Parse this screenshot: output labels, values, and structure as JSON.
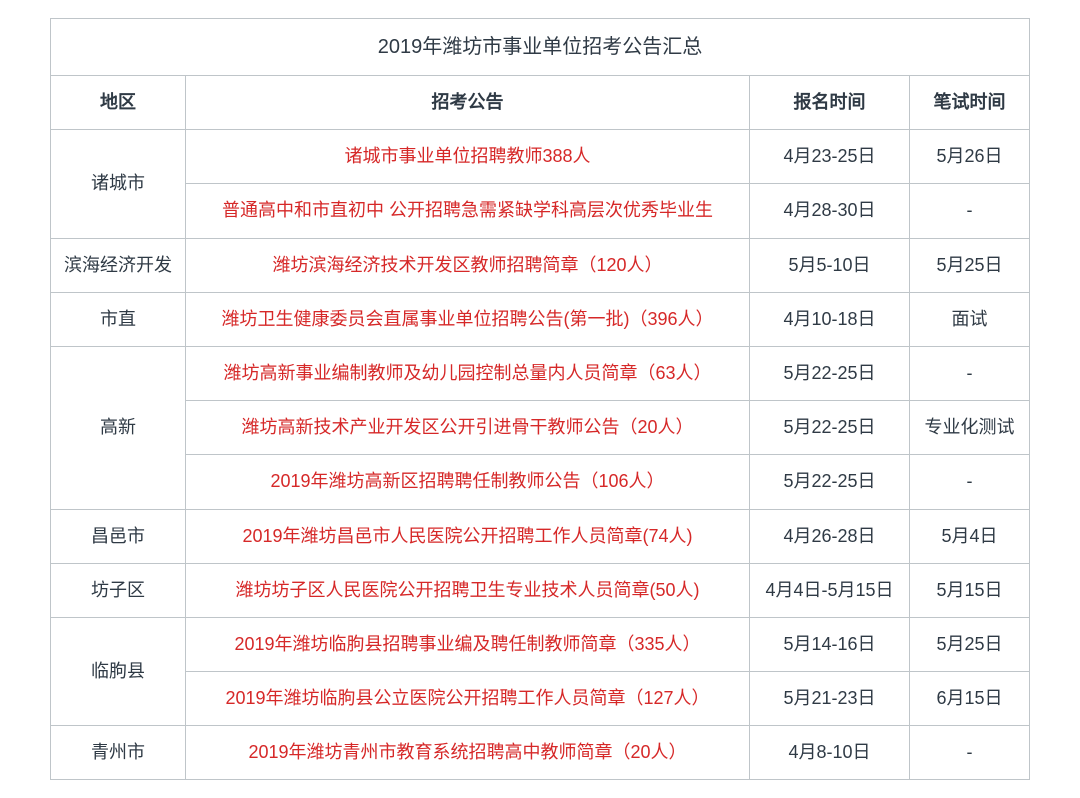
{
  "title": "2019年潍坊市事业单位招考公告汇总",
  "headers": {
    "area": "地区",
    "announcement": "招考公告",
    "register_time": "报名时间",
    "exam_time": "笔试时间"
  },
  "style": {
    "border_color": "#bfc5c9",
    "link_color": "#d62828",
    "text_color": "#2f3a45",
    "background_color": "#ffffff",
    "font_size_header": 20,
    "font_size_body": 18,
    "col_widths": {
      "area": 135,
      "register": 160,
      "exam": 120
    }
  },
  "areas": [
    {
      "name": "诸城市",
      "items": [
        {
          "announcement": "诸城市事业单位招聘教师388人",
          "register_time": "4月23-25日",
          "exam_time": "5月26日"
        },
        {
          "announcement": "普通高中和市直初中 公开招聘急需紧缺学科高层次优秀毕业生",
          "register_time": "4月28-30日",
          "exam_time": "-"
        }
      ]
    },
    {
      "name": "滨海经济开发",
      "items": [
        {
          "announcement": "潍坊滨海经济技术开发区教师招聘简章（120人）",
          "register_time": "5月5-10日",
          "exam_time": "5月25日"
        }
      ]
    },
    {
      "name": "市直",
      "items": [
        {
          "announcement": "潍坊卫生健康委员会直属事业单位招聘公告(第一批)（396人）",
          "register_time": "4月10-18日",
          "exam_time": "面试"
        }
      ]
    },
    {
      "name": "高新",
      "items": [
        {
          "announcement": "潍坊高新事业编制教师及幼儿园控制总量内人员简章（63人）",
          "register_time": "5月22-25日",
          "exam_time": "-"
        },
        {
          "announcement": "潍坊高新技术产业开发区公开引进骨干教师公告（20人）",
          "register_time": "5月22-25日",
          "exam_time": "专业化测试"
        },
        {
          "announcement": "2019年潍坊高新区招聘聘任制教师公告（106人）",
          "register_time": "5月22-25日",
          "exam_time": "-"
        }
      ]
    },
    {
      "name": "昌邑市",
      "items": [
        {
          "announcement": "2019年潍坊昌邑市人民医院公开招聘工作人员简章(74人)",
          "register_time": "4月26-28日",
          "exam_time": "5月4日"
        }
      ]
    },
    {
      "name": "坊子区",
      "items": [
        {
          "announcement": "潍坊坊子区人民医院公开招聘卫生专业技术人员简章(50人)",
          "register_time": "4月4日-5月15日",
          "exam_time": "5月15日"
        }
      ]
    },
    {
      "name": "临朐县",
      "items": [
        {
          "announcement": "2019年潍坊临朐县招聘事业编及聘任制教师简章（335人）",
          "register_time": "5月14-16日",
          "exam_time": "5月25日"
        },
        {
          "announcement": "2019年潍坊临朐县公立医院公开招聘工作人员简章（127人）",
          "register_time": "5月21-23日",
          "exam_time": "6月15日"
        }
      ]
    },
    {
      "name": "青州市",
      "items": [
        {
          "announcement": "2019年潍坊青州市教育系统招聘高中教师简章（20人）",
          "register_time": "4月8-10日",
          "exam_time": "-"
        }
      ]
    }
  ]
}
